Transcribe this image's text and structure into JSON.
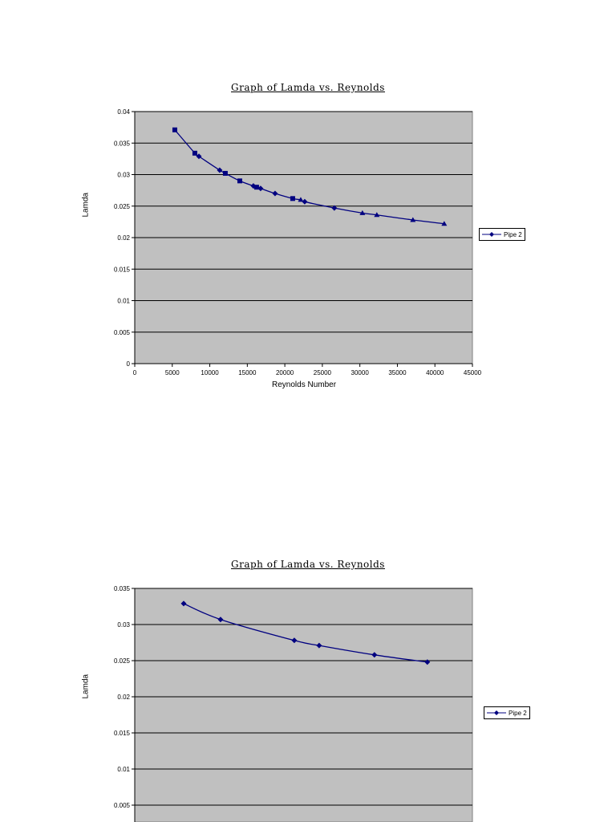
{
  "chart_data": [
    {
      "type": "scatter",
      "title": "Graph of Lamda vs. Reynolds",
      "xlabel": "Reynolds Number",
      "ylabel": "Lamda",
      "xlim": [
        0,
        45000
      ],
      "ylim": [
        0,
        0.04
      ],
      "x_ticks": [
        0,
        5000,
        10000,
        15000,
        20000,
        25000,
        30000,
        35000,
        40000,
        45000
      ],
      "y_ticks": [
        0,
        0.005,
        0.01,
        0.015,
        0.02,
        0.025,
        0.03,
        0.035,
        0.04
      ],
      "x_tick_labels": [
        "0",
        "5000",
        "10000",
        "15000",
        "20000",
        "25000",
        "30000",
        "35000",
        "40000",
        "45000"
      ],
      "y_tick_labels": [
        "0",
        "0.005",
        "0.01",
        "0.015",
        "0.02",
        "0.025",
        "0.03",
        "0.035",
        "0.04"
      ],
      "grid": "horizontal",
      "plot_background": "#c0c0c0",
      "legend_position": "right",
      "series": [
        {
          "name": "Pipe 2",
          "color": "#000080",
          "marker": "mixed (square, diamond, triangle)",
          "smoothed_line": true,
          "x": [
            5340,
            8010,
            8550,
            11320,
            12070,
            14000,
            15810,
            16240,
            16770,
            18700,
            21050,
            22120,
            22650,
            26600,
            30340,
            32260,
            37070,
            41240
          ],
          "y": [
            0.0371,
            0.0334,
            0.0329,
            0.0307,
            0.0302,
            0.029,
            0.0282,
            0.028,
            0.0278,
            0.027,
            0.0262,
            0.026,
            0.0257,
            0.0247,
            0.0239,
            0.0236,
            0.0228,
            0.0222
          ],
          "markers": [
            "square",
            "square",
            "diamond",
            "diamond",
            "square",
            "square",
            "diamond",
            "square",
            "diamond",
            "diamond",
            "square",
            "triangle",
            "diamond",
            "diamond",
            "triangle",
            "triangle",
            "triangle",
            "triangle"
          ]
        }
      ],
      "legend": [
        "Pipe 2"
      ]
    },
    {
      "type": "scatter",
      "title": "Graph of Lamda vs. Reynolds",
      "xlabel": "",
      "ylabel": "Lamda",
      "ylim": [
        0,
        0.035
      ],
      "y_ticks": [
        0.005,
        0.01,
        0.015,
        0.02,
        0.025,
        0.03,
        0.035
      ],
      "y_tick_labels": [
        "0.005",
        "0.01",
        "0.015",
        "0.02",
        "0.025",
        "0.03",
        "0.035"
      ],
      "grid": "horizontal",
      "plot_background": "#c0c0c0",
      "legend_position": "right",
      "series": [
        {
          "name": "Pipe 2",
          "color": "#000080",
          "marker": "diamond",
          "smoothed_line": true,
          "x": [
            6520,
            11430,
            21260,
            24570,
            31940,
            38990
          ],
          "y": [
            0.0329,
            0.0307,
            0.0278,
            0.0271,
            0.0258,
            0.0248
          ]
        }
      ],
      "legend": [
        "Pipe 2"
      ]
    }
  ],
  "charts": [
    {
      "title": "Graph of Lamda vs. Reynolds",
      "ylabel": "Lamda",
      "xlabel": "Reynolds Number",
      "legend_label": "Pipe 2"
    },
    {
      "title": "Graph of Lamda vs. Reynolds",
      "ylabel": "Lamda",
      "legend_label": "Pipe 2"
    }
  ]
}
